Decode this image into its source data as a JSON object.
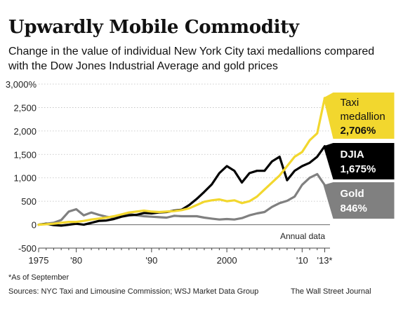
{
  "header": {
    "title": "Upwardly Mobile Commodity",
    "subtitle": "Change in the value of individual New York City taxi medallions compared with the Dow Jones Industrial Average and gold prices"
  },
  "chart_data": {
    "type": "line",
    "ylim": [
      -500,
      3000
    ],
    "xlim": [
      1975,
      2013.7
    ],
    "y_ticks": [
      {
        "value": 3000,
        "label": "3,000%"
      },
      {
        "value": 2500,
        "label": "2,500"
      },
      {
        "value": 2000,
        "label": "2,000"
      },
      {
        "value": 1500,
        "label": "1,500"
      },
      {
        "value": 1000,
        "label": "1,000"
      },
      {
        "value": 500,
        "label": "500"
      },
      {
        "value": 0,
        "label": "0"
      },
      {
        "value": -500,
        "label": "-500"
      }
    ],
    "x_ticks": [
      {
        "value": 1975,
        "label": "1975"
      },
      {
        "value": 1980,
        "label": "'80"
      },
      {
        "value": 1990,
        "label": "'90"
      },
      {
        "value": 2000,
        "label": "2000"
      },
      {
        "value": 2010,
        "label": "'10"
      },
      {
        "value": 2013,
        "label": "'13*"
      }
    ],
    "annotation": "Annual data",
    "grid": true,
    "series": [
      {
        "name": "Gold",
        "end_label_line1": "Gold",
        "end_label_line2": "846%",
        "color": "#808080",
        "x": [
          1975,
          1976,
          1977,
          1978,
          1979,
          1980,
          1981,
          1982,
          1983,
          1984,
          1985,
          1986,
          1987,
          1988,
          1989,
          1990,
          1991,
          1992,
          1993,
          1994,
          1995,
          1996,
          1997,
          1998,
          1999,
          2000,
          2001,
          2002,
          2003,
          2004,
          2005,
          2006,
          2007,
          2008,
          2009,
          2010,
          2011,
          2012,
          2013
        ],
        "y": [
          0,
          20,
          40,
          100,
          280,
          330,
          200,
          260,
          210,
          170,
          150,
          180,
          230,
          200,
          180,
          170,
          160,
          150,
          190,
          180,
          180,
          180,
          150,
          130,
          110,
          120,
          110,
          140,
          200,
          240,
          270,
          380,
          460,
          510,
          600,
          850,
          1000,
          1080,
          846
        ]
      },
      {
        "name": "DJIA",
        "end_label_line1": "DJIA",
        "end_label_line2": "1,675%",
        "color": "#000000",
        "x": [
          1975,
          1976,
          1977,
          1978,
          1979,
          1980,
          1981,
          1982,
          1983,
          1984,
          1985,
          1986,
          1987,
          1988,
          1989,
          1990,
          1991,
          1992,
          1993,
          1994,
          1995,
          1996,
          1997,
          1998,
          1999,
          2000,
          2001,
          2002,
          2003,
          2004,
          2005,
          2006,
          2007,
          2008,
          2009,
          2010,
          2011,
          2012,
          2013
        ],
        "y": [
          0,
          20,
          -10,
          -20,
          0,
          20,
          0,
          40,
          80,
          90,
          120,
          170,
          200,
          210,
          250,
          240,
          260,
          270,
          300,
          320,
          420,
          550,
          700,
          860,
          1100,
          1250,
          1150,
          900,
          1100,
          1150,
          1150,
          1350,
          1450,
          950,
          1150,
          1250,
          1320,
          1450,
          1675
        ]
      },
      {
        "name": "Taxi medallion",
        "end_label_line1": "Taxi",
        "end_label_line2": "medallion",
        "end_label_line3": "2,706%",
        "color": "#f2d72e",
        "x": [
          1975,
          1976,
          1977,
          1978,
          1979,
          1980,
          1981,
          1982,
          1983,
          1984,
          1985,
          1986,
          1987,
          1988,
          1989,
          1990,
          1991,
          1992,
          1993,
          1994,
          1995,
          1996,
          1997,
          1998,
          1999,
          2000,
          2001,
          2002,
          2003,
          2004,
          2005,
          2006,
          2007,
          2008,
          2009,
          2010,
          2011,
          2012,
          2013
        ],
        "y": [
          0,
          10,
          20,
          40,
          60,
          60,
          80,
          110,
          130,
          150,
          180,
          220,
          260,
          280,
          300,
          280,
          270,
          280,
          290,
          310,
          350,
          420,
          490,
          520,
          540,
          500,
          520,
          460,
          500,
          600,
          750,
          900,
          1050,
          1250,
          1450,
          1550,
          1800,
          1950,
          2706
        ]
      }
    ]
  },
  "footer": {
    "footnote": "*As of September",
    "sources": "Sources: NYC Taxi and Limousine Commission; WSJ Market Data Group",
    "credit": "The Wall Street Journal"
  },
  "colors": {
    "yellow": "#f2d72e",
    "black": "#000000",
    "gray": "#808080",
    "grid": "#c8c8c8"
  }
}
